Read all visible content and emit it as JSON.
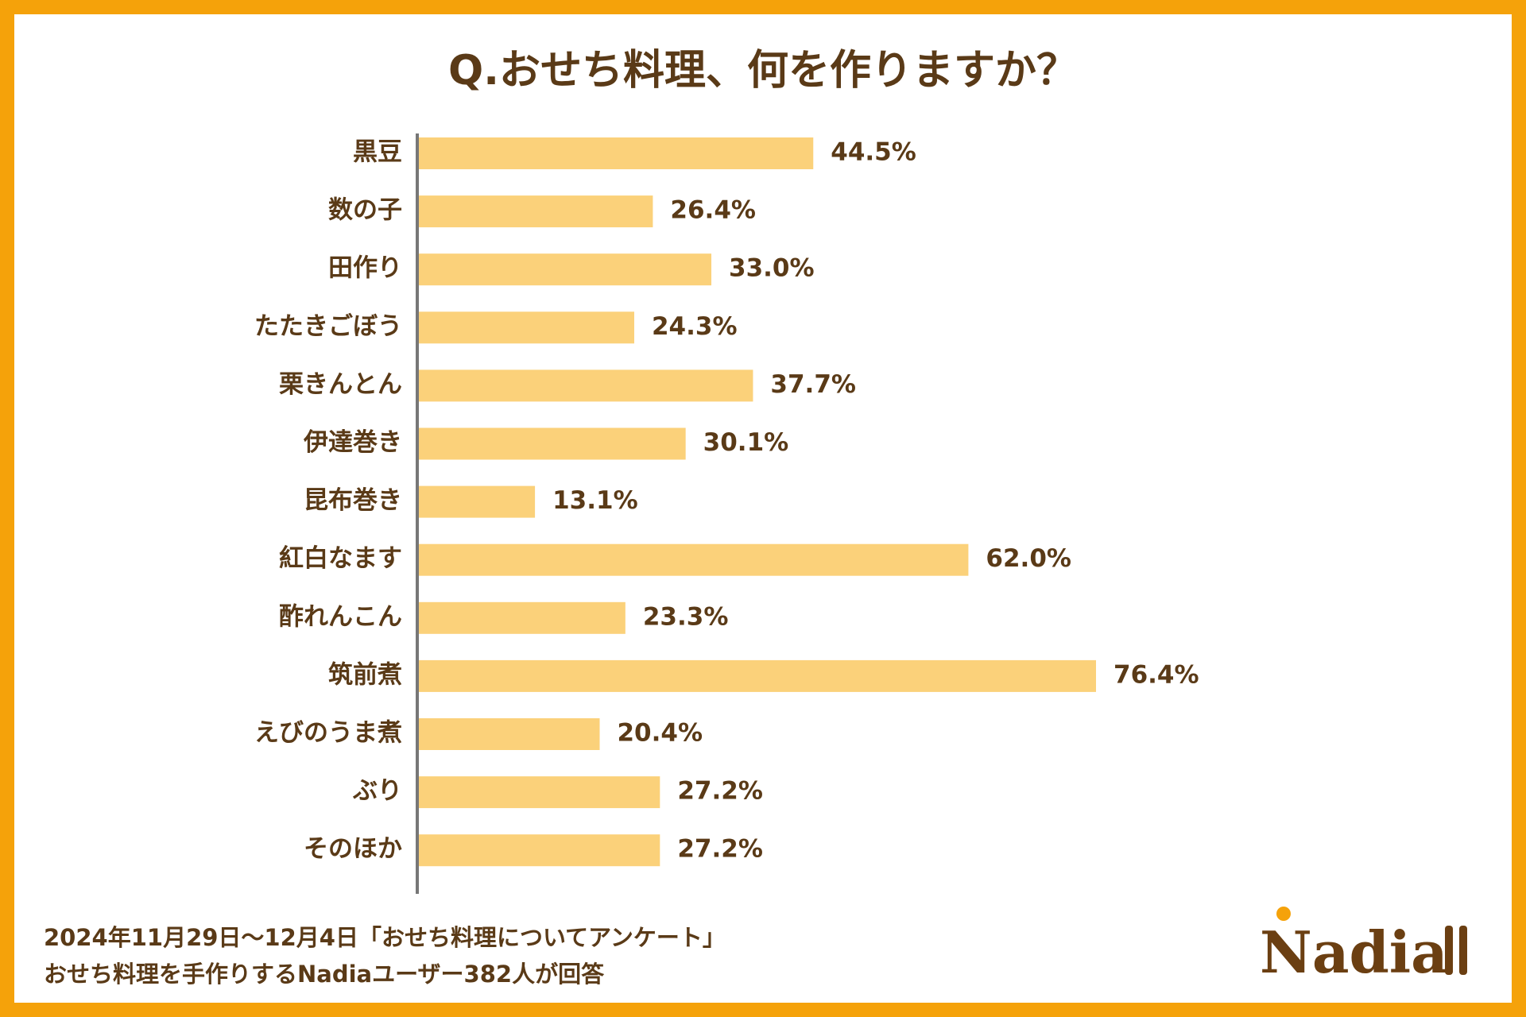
{
  "chart_data": {
    "type": "barh",
    "title": "Q.おせち料理、何を作りますか？",
    "categories": [
      "黒豆",
      "数の子",
      "田作り",
      "たたきごぼう",
      "栗きんとん",
      "伊達巻き",
      "昆布巻き",
      "紅白なます",
      "酢れんこん",
      "筑前煮",
      "えびのうま煮",
      "ぶり",
      "そのほか"
    ],
    "values": [
      44.5,
      26.4,
      33.0,
      24.3,
      37.7,
      30.1,
      13.1,
      62.0,
      23.3,
      76.4,
      20.4,
      27.2,
      27.2
    ],
    "value_labels": [
      "44.5%",
      "26.4%",
      "33.0%",
      "24.3%",
      "37.7%",
      "30.1%",
      "13.1%",
      "62.0%",
      "23.3%",
      "76.4%",
      "20.4%",
      "27.2%",
      "27.2%"
    ],
    "color": "#fbd17a",
    "notes": [
      "2024年11月29日〜12月4日「おせち料理についてアンケート」",
      "おせち料理を手作りするNadiaユーザー382人が回答"
    ],
    "logo": "Nadia"
  }
}
